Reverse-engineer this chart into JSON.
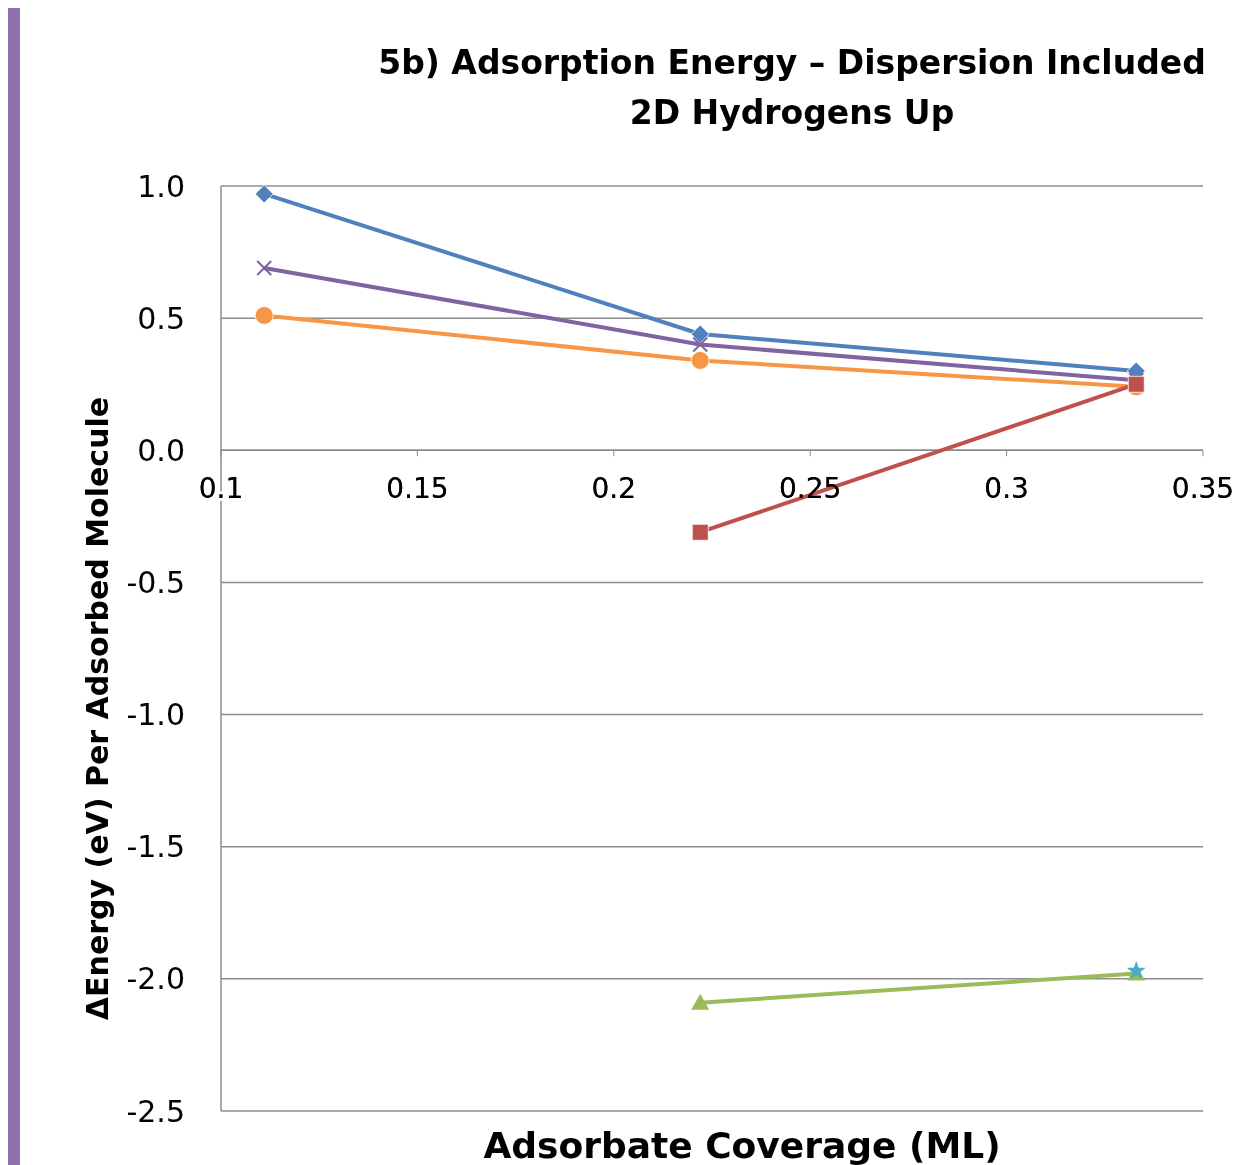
{
  "chart_data": {
    "type": "line",
    "title": "5b) Adsorption Energy – Dispersion Included\n2D Hydrogens Up",
    "xlabel": "Adsorbate Coverage (ML)",
    "ylabel": "ΔEnergy (eV) Per Adsorbed Molecule",
    "xlim": [
      0.1,
      0.35
    ],
    "xticks": [
      0.1,
      0.15,
      0.2,
      0.25,
      0.3,
      0.35
    ],
    "ylim": [
      -2.5,
      1.0
    ],
    "yticks": [
      {
        "value": 1.0,
        "label": "1.0"
      },
      {
        "value": 0.5,
        "label": "0.5"
      },
      {
        "value": 0,
        "label": "0.0"
      },
      {
        "value": -0.5,
        "label": "-0.5"
      },
      {
        "value": -1.0,
        "label": "-1.0"
      },
      {
        "value": -1.5,
        "label": "-1.5"
      },
      {
        "value": -2.0,
        "label": "-2.0"
      },
      {
        "value": -2.5,
        "label": "-2.5"
      }
    ],
    "grid": "y",
    "series": [
      {
        "color": "#4f81bd",
        "marker": "diamond",
        "x": [
          0.111,
          0.222,
          0.333
        ],
        "values": [
          0.97,
          0.44,
          0.3
        ]
      },
      {
        "color": "#8064a2",
        "marker": "cross",
        "x": [
          0.111,
          0.222,
          0.333
        ],
        "values": [
          0.69,
          0.4,
          0.265
        ]
      },
      {
        "color": "#f79646",
        "marker": "circle",
        "x": [
          0.111,
          0.222,
          0.333
        ],
        "values": [
          0.51,
          0.34,
          0.24
        ]
      },
      {
        "color": "#c0504d",
        "marker": "square",
        "x": [
          0.222,
          0.333
        ],
        "values": [
          -0.31,
          0.25
        ]
      },
      {
        "color": "#9bbb59",
        "marker": "triangle",
        "x": [
          0.222,
          0.333
        ],
        "values": [
          -2.09,
          -1.98
        ]
      },
      {
        "color": "#4bacc6",
        "marker": "star",
        "x": [
          0.333
        ],
        "values": [
          -1.97
        ]
      }
    ]
  }
}
